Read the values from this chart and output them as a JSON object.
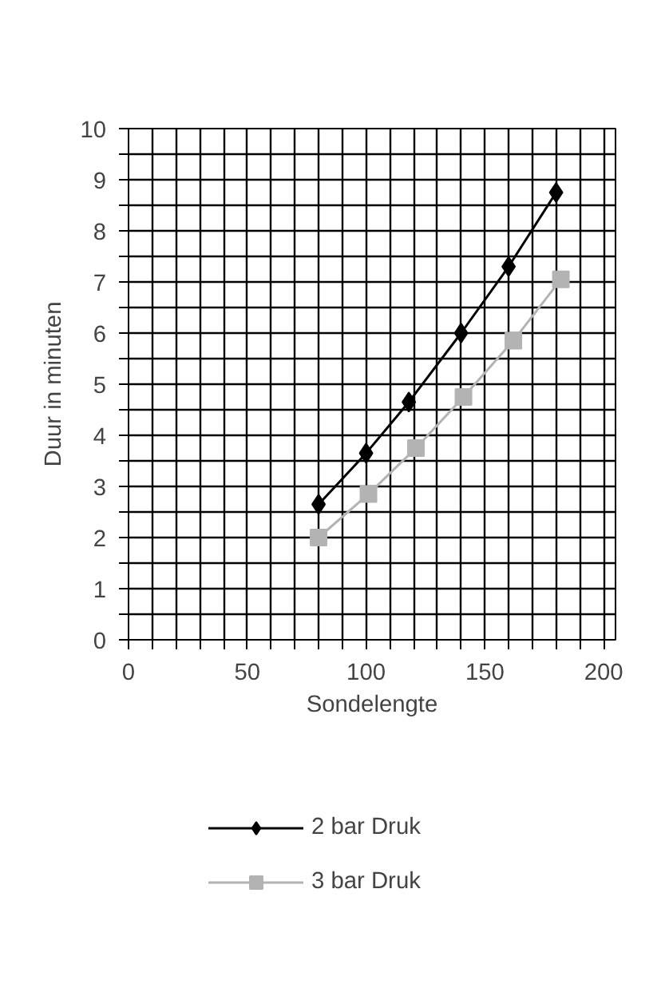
{
  "chart_data": {
    "type": "line",
    "xlabel": "Sondelengte",
    "ylabel": "Duur in minuten",
    "xlim": [
      0,
      205
    ],
    "ylim": [
      0,
      10
    ],
    "xticks": [
      0,
      {
        "value": 10,
        "label": null
      },
      {
        "value": 20,
        "label": null
      },
      {
        "value": 30,
        "label": null
      },
      {
        "value": 40,
        "label": null
      },
      50,
      {
        "value": 60,
        "label": null
      },
      {
        "value": 70,
        "label": null
      },
      {
        "value": 80,
        "label": null
      },
      {
        "value": 90,
        "label": null
      },
      100,
      {
        "value": 110,
        "label": null
      },
      {
        "value": 120,
        "label": null
      },
      {
        "value": 130,
        "label": null
      },
      {
        "value": 140,
        "label": null
      },
      150,
      {
        "value": 160,
        "label": null
      },
      {
        "value": 170,
        "label": null
      },
      {
        "value": 180,
        "label": null
      },
      {
        "value": 190,
        "label": null
      },
      200
    ],
    "yticks": [
      0,
      {
        "value": 0.5,
        "label": null
      },
      1,
      {
        "value": 1.5,
        "label": null
      },
      2,
      {
        "value": 2.5,
        "label": null
      },
      3,
      {
        "value": 3.5,
        "label": null
      },
      4,
      {
        "value": 4.5,
        "label": null
      },
      5,
      {
        "value": 5.5,
        "label": null
      },
      6,
      {
        "value": 6.5,
        "label": null
      },
      7,
      {
        "value": 7.5,
        "label": null
      },
      8,
      {
        "value": 8.5,
        "label": null
      },
      9,
      {
        "value": 9.5,
        "label": null
      },
      10
    ],
    "grid": true,
    "legend": "bottom",
    "line_style": "solid",
    "series": [
      {
        "name": "2 bar Druk",
        "color": "#000000",
        "marker": "diamond",
        "x": [
          80,
          100,
          118,
          140,
          160,
          180
        ],
        "values": [
          2.65,
          3.65,
          4.65,
          6.0,
          7.3,
          8.75
        ]
      },
      {
        "name": "3 bar Druk",
        "color": "#b3b3b3",
        "marker": "square",
        "x": [
          80,
          101,
          121,
          141,
          162,
          182
        ],
        "values": [
          2.0,
          2.85,
          3.75,
          4.75,
          5.85,
          7.05
        ]
      }
    ]
  }
}
